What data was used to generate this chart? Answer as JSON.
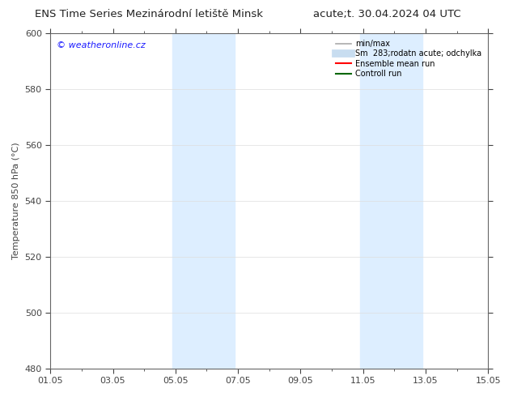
{
  "title_left": "ENS Time Series Mezinárodní letiště Minsk",
  "title_right": "acute;t. 30.04.2024 04 UTC",
  "ylabel": "Temperature 850 hPa (°C)",
  "ylim": [
    480,
    600
  ],
  "yticks": [
    480,
    500,
    520,
    540,
    560,
    580,
    600
  ],
  "xlim": [
    0,
    14
  ],
  "xtick_labels": [
    "01.05",
    "03.05",
    "05.05",
    "07.05",
    "09.05",
    "11.05",
    "13.05",
    "15.05"
  ],
  "xtick_positions": [
    0,
    2,
    4,
    6,
    8,
    10,
    12,
    14
  ],
  "shaded_regions": [
    {
      "x_start": 3.9,
      "x_end": 5.9,
      "color": "#ddeeff"
    },
    {
      "x_start": 9.9,
      "x_end": 11.9,
      "color": "#ddeeff"
    }
  ],
  "watermark_text": "© weatheronline.cz",
  "watermark_color": "#1a1aff",
  "legend_entries": [
    {
      "label": "min/max",
      "color": "#aaaaaa",
      "lw": 1.2
    },
    {
      "label": "Sm  283;rodatn acute; odchylka",
      "color": "#c8ddf0",
      "lw": 7
    },
    {
      "label": "Ensemble mean run",
      "color": "#ff0000",
      "lw": 1.5
    },
    {
      "label": "Controll run",
      "color": "#006600",
      "lw": 1.5
    }
  ],
  "bg_color": "#ffffff",
  "plot_bg_color": "#ffffff",
  "border_color": "#666666",
  "tick_color": "#444444",
  "title_fontsize": 9.5,
  "label_fontsize": 8,
  "tick_fontsize": 8,
  "legend_fontsize": 7,
  "watermark_fontsize": 8
}
